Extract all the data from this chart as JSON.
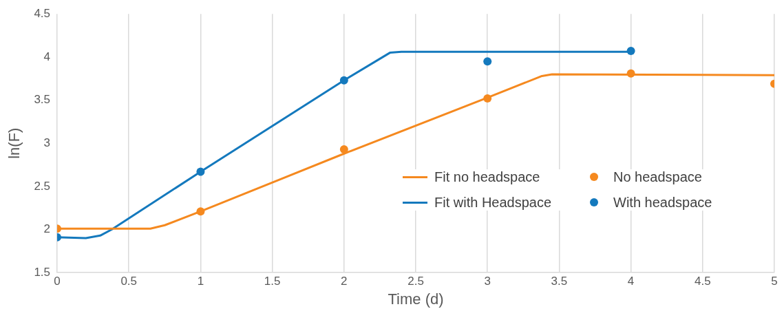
{
  "chart_data": {
    "type": "scatter",
    "xlabel": "Time (d)",
    "ylabel": "ln(F)",
    "xlim": [
      0,
      5
    ],
    "xticks": [
      0,
      0.5,
      1,
      1.5,
      2,
      2.5,
      3,
      3.5,
      4,
      4.5,
      5
    ],
    "ylim": [
      1.5,
      4.5
    ],
    "yticks": [
      1.5,
      2,
      2.5,
      3,
      3.5,
      4,
      4.5
    ],
    "grid": "x",
    "legend": "bottom right",
    "series": [
      {
        "name": "Fit no headspace",
        "type": "line",
        "color": "#f5891f",
        "marker": "none",
        "x": [
          0,
          0.5,
          0.65,
          0.75,
          1,
          2,
          3,
          3.38,
          3.45,
          5
        ],
        "values": [
          2.01,
          2.01,
          2.01,
          2.05,
          2.21,
          2.88,
          3.53,
          3.78,
          3.8,
          3.79
        ]
      },
      {
        "name": "No headspace",
        "type": "scatter",
        "color": "#f5891f",
        "marker": "circle",
        "x": [
          0,
          1,
          2,
          3,
          4,
          5
        ],
        "values": [
          2.01,
          2.21,
          2.93,
          3.52,
          3.81,
          3.69
        ]
      },
      {
        "name": "Fit with Headspace",
        "type": "line",
        "color": "#1479bd",
        "marker": "none",
        "x": [
          0,
          0.2,
          0.3,
          0.38,
          1,
          2,
          2.25,
          2.32,
          2.4,
          4
        ],
        "values": [
          1.91,
          1.9,
          1.93,
          2.0,
          2.67,
          3.73,
          3.98,
          4.05,
          4.06,
          4.06
        ]
      },
      {
        "name": "With headspace",
        "type": "scatter",
        "color": "#1479bd",
        "marker": "circle",
        "x": [
          0,
          1,
          2,
          3,
          4
        ],
        "values": [
          1.91,
          2.67,
          3.73,
          3.95,
          4.07
        ]
      }
    ]
  }
}
